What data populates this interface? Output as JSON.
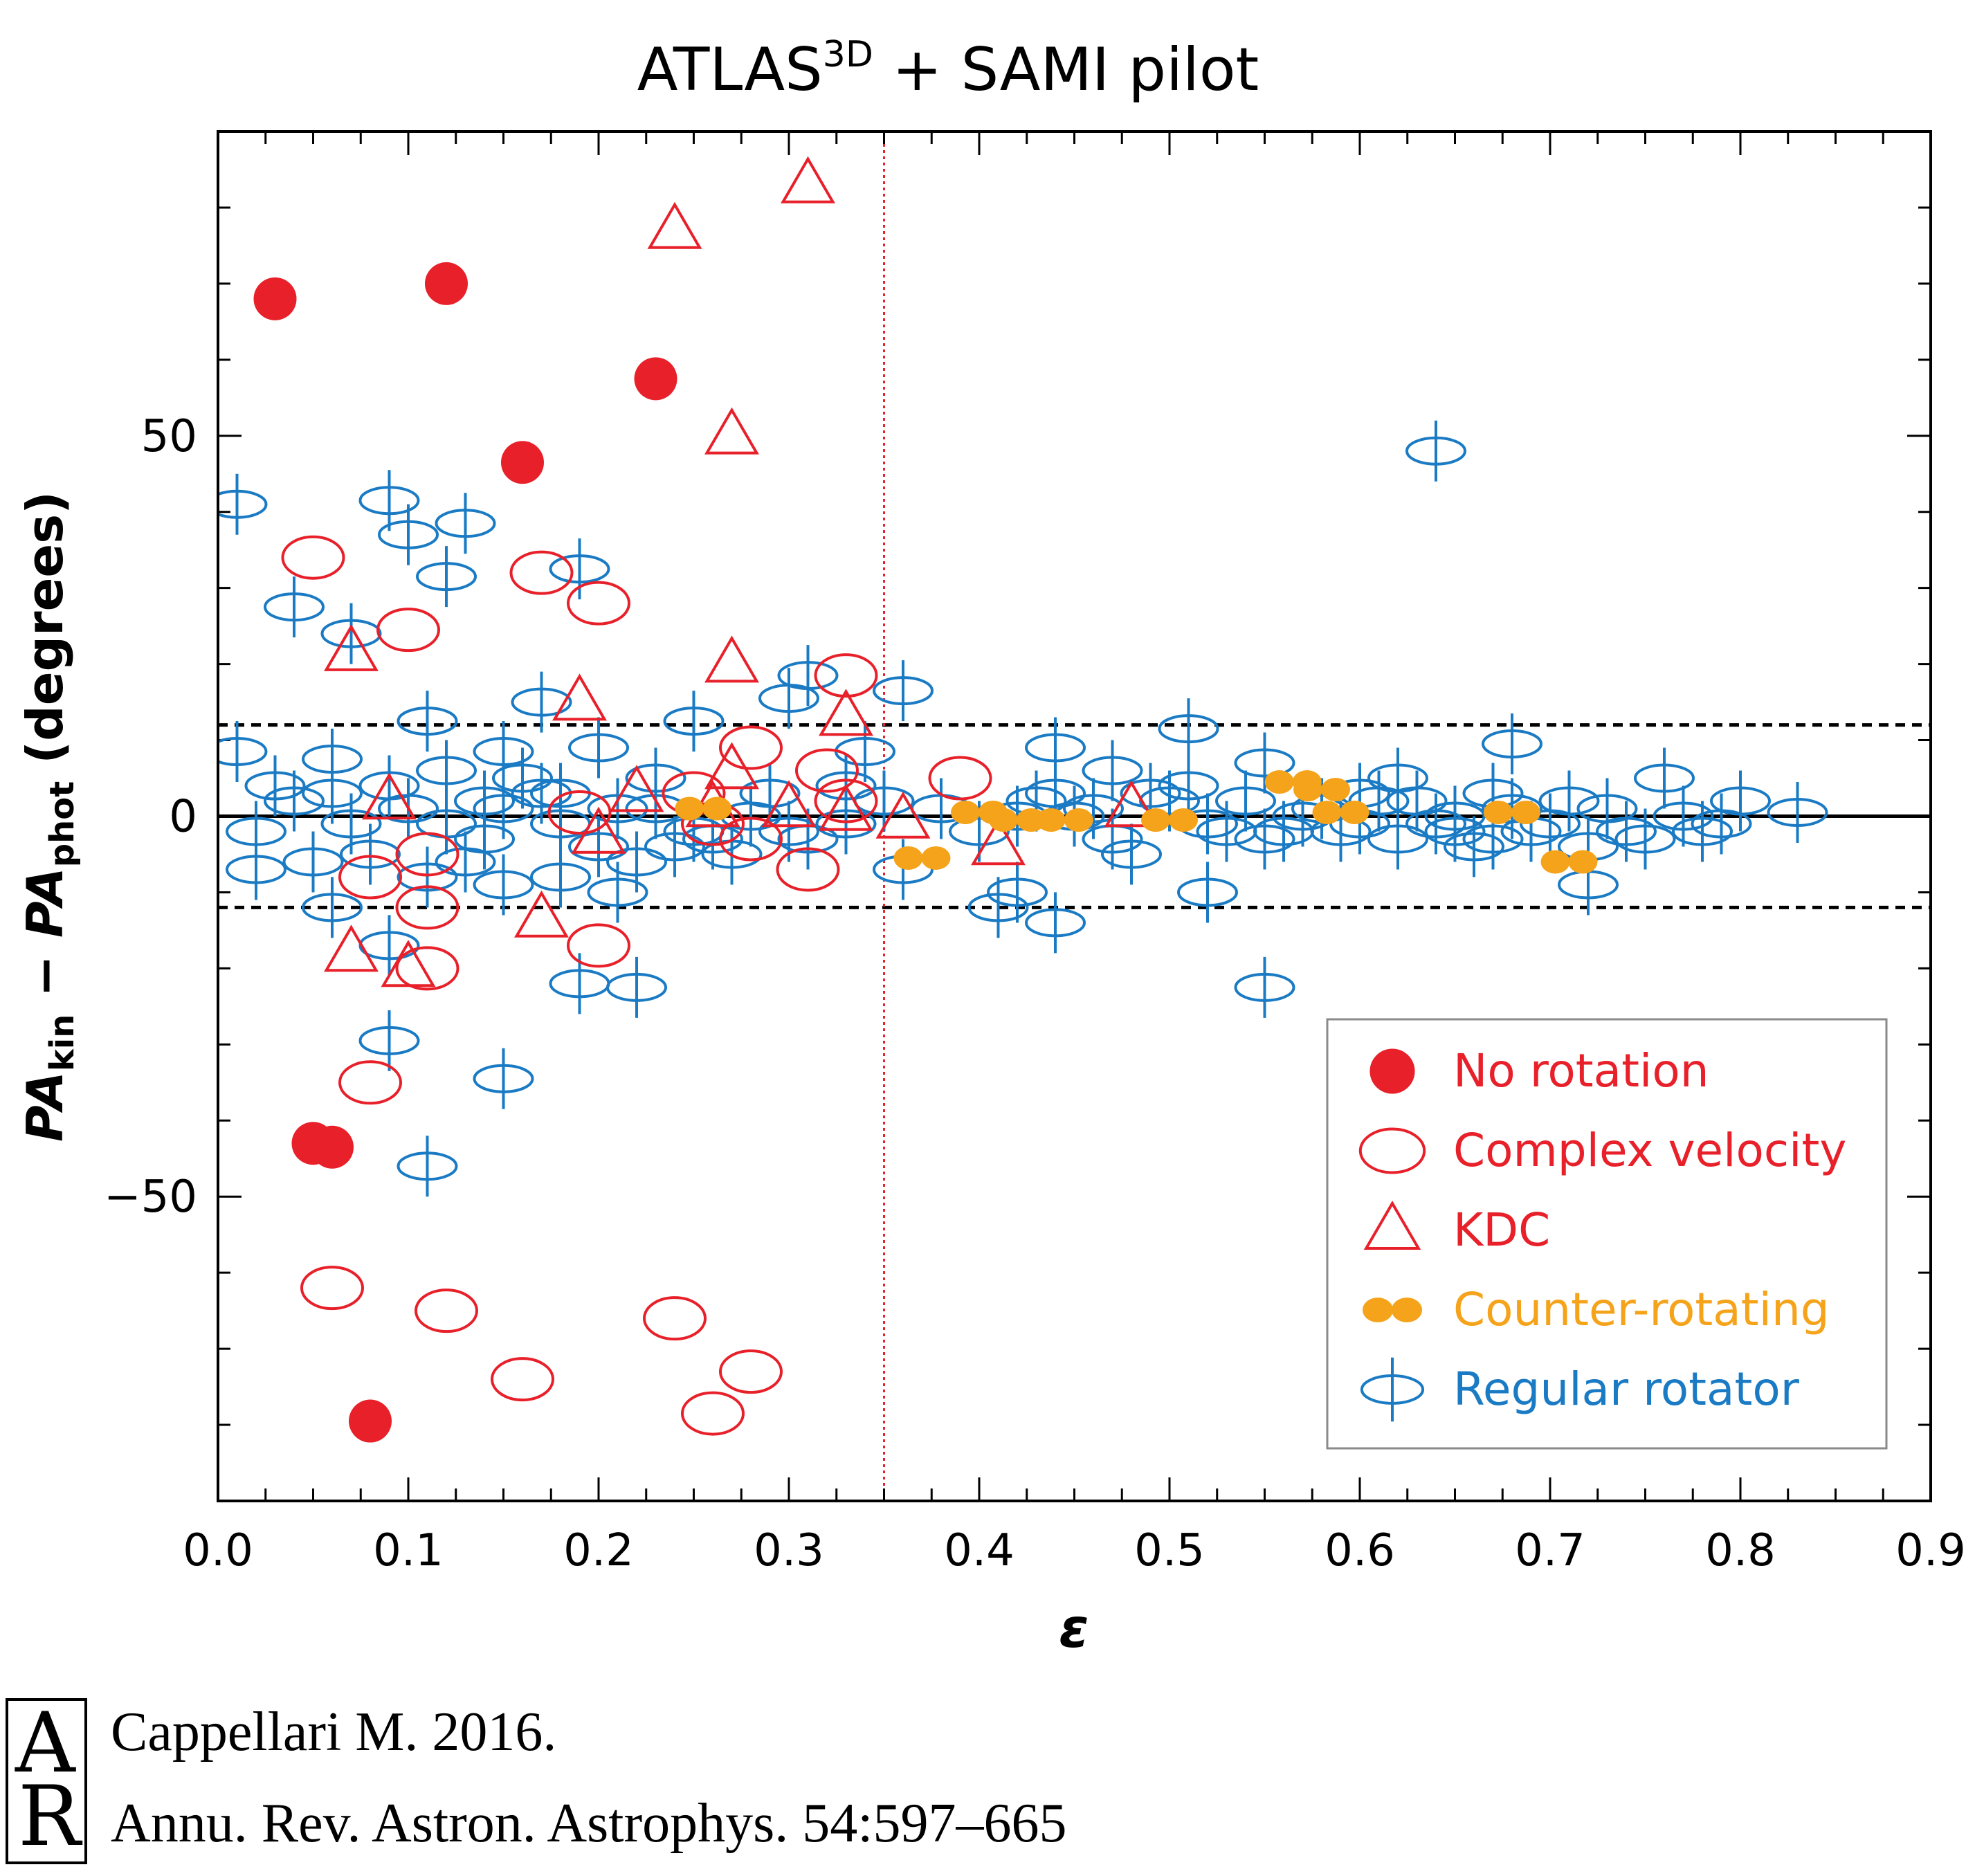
{
  "chart_data": {
    "type": "scatter",
    "title": "ATLAS",
    "title_superscript": "3D",
    "title_suffix": " + SAMI pilot",
    "xlabel": "ε",
    "ylabel": {
      "pa1": "PA",
      "pa1_sub": "kin",
      "minus": " − ",
      "pa2": "PA",
      "pa2_sub": "phot",
      "units": " (degrees)"
    },
    "xlim": [
      0.0,
      0.9
    ],
    "ylim": [
      -90,
      90
    ],
    "xticks": [
      0.0,
      0.1,
      0.2,
      0.3,
      0.4,
      0.5,
      0.6,
      0.7,
      0.8,
      0.9
    ],
    "xtick_labels": [
      "0.0",
      "0.1",
      "0.2",
      "0.3",
      "0.4",
      "0.5",
      "0.6",
      "0.7",
      "0.8",
      "0.9"
    ],
    "yticks": [
      -50,
      0,
      50
    ],
    "ytick_labels": [
      "−50",
      "0",
      "50"
    ],
    "reference_lines": {
      "zero": 0,
      "dashed": [
        12,
        -12
      ],
      "vertical_dotted": 0.35
    },
    "colors": {
      "red": "#e8202a",
      "orange": "#f5a31a",
      "blue": "#1a7bc4",
      "axis": "#000000"
    },
    "series": [
      {
        "name": "No rotation",
        "marker": "filled-circle",
        "points": [
          [
            0.03,
            68
          ],
          [
            0.12,
            70
          ],
          [
            0.23,
            57.5
          ],
          [
            0.16,
            46.5
          ],
          [
            0.05,
            -43
          ],
          [
            0.06,
            -43.5
          ],
          [
            0.08,
            -79.5
          ]
        ]
      },
      {
        "name": "Complex velocity",
        "marker": "open-ellipse",
        "points": [
          [
            0.05,
            34
          ],
          [
            0.17,
            32
          ],
          [
            0.2,
            28
          ],
          [
            0.1,
            24.5
          ],
          [
            0.33,
            18.5
          ],
          [
            0.28,
            9
          ],
          [
            0.32,
            6
          ],
          [
            0.39,
            5
          ],
          [
            0.25,
            3
          ],
          [
            0.19,
            0.5
          ],
          [
            0.26,
            -1
          ],
          [
            0.28,
            -3
          ],
          [
            0.11,
            -5
          ],
          [
            0.08,
            -8
          ],
          [
            0.11,
            -12
          ],
          [
            0.31,
            -7
          ],
          [
            0.2,
            -17
          ],
          [
            0.11,
            -20
          ],
          [
            0.08,
            -35
          ],
          [
            0.06,
            -62
          ],
          [
            0.12,
            -65
          ],
          [
            0.16,
            -74
          ],
          [
            0.24,
            -66
          ],
          [
            0.28,
            -73
          ],
          [
            0.26,
            -78.5
          ],
          [
            0.33,
            2
          ]
        ]
      },
      {
        "name": "KDC",
        "marker": "open-triangle",
        "points": [
          [
            0.31,
            83
          ],
          [
            0.24,
            77
          ],
          [
            0.27,
            50
          ],
          [
            0.07,
            21.5
          ],
          [
            0.27,
            20
          ],
          [
            0.19,
            15
          ],
          [
            0.33,
            13
          ],
          [
            0.27,
            6
          ],
          [
            0.09,
            2
          ],
          [
            0.22,
            3
          ],
          [
            0.26,
            1
          ],
          [
            0.3,
            1
          ],
          [
            0.33,
            0.5
          ],
          [
            0.36,
            -0.5
          ],
          [
            0.48,
            1
          ],
          [
            0.41,
            -4
          ],
          [
            0.17,
            -13.5
          ],
          [
            0.07,
            -18
          ],
          [
            0.1,
            -20
          ],
          [
            0.2,
            -2.5
          ]
        ]
      },
      {
        "name": "Counter-rotating",
        "marker": "orange-pair",
        "points": [
          [
            0.255,
            1
          ],
          [
            0.37,
            -5.5
          ],
          [
            0.4,
            0.5
          ],
          [
            0.42,
            -0.5
          ],
          [
            0.445,
            -0.5
          ],
          [
            0.5,
            -0.5
          ],
          [
            0.565,
            4.5
          ],
          [
            0.58,
            3.5
          ],
          [
            0.59,
            0.5
          ],
          [
            0.68,
            0.5
          ],
          [
            0.71,
            -6
          ]
        ]
      },
      {
        "name": "Regular rotator",
        "marker": "ellipse-cross",
        "points": [
          [
            0.64,
            48
          ],
          [
            0.01,
            41
          ],
          [
            0.09,
            41.5
          ],
          [
            0.1,
            37
          ],
          [
            0.13,
            38.5
          ],
          [
            0.12,
            31.5
          ],
          [
            0.19,
            32.5
          ],
          [
            0.04,
            27.5
          ],
          [
            0.07,
            24
          ],
          [
            0.36,
            16.5
          ],
          [
            0.3,
            15.5
          ],
          [
            0.31,
            18.5
          ],
          [
            0.17,
            15
          ],
          [
            0.01,
            8.5
          ],
          [
            0.11,
            12.5
          ],
          [
            0.25,
            12.5
          ],
          [
            0.51,
            11.5
          ],
          [
            0.44,
            9
          ],
          [
            0.68,
            9.5
          ],
          [
            0.06,
            7.5
          ],
          [
            0.15,
            8.5
          ],
          [
            0.2,
            9
          ],
          [
            0.34,
            8.5
          ],
          [
            0.47,
            6
          ],
          [
            0.55,
            7
          ],
          [
            0.62,
            5
          ],
          [
            0.76,
            5
          ],
          [
            0.02,
            -2
          ],
          [
            0.04,
            2
          ],
          [
            0.06,
            3
          ],
          [
            0.09,
            4
          ],
          [
            0.12,
            6
          ],
          [
            0.14,
            2
          ],
          [
            0.16,
            5
          ],
          [
            0.18,
            -1
          ],
          [
            0.21,
            1
          ],
          [
            0.23,
            5
          ],
          [
            0.25,
            -2
          ],
          [
            0.29,
            3
          ],
          [
            0.33,
            4
          ],
          [
            0.38,
            1
          ],
          [
            0.43,
            2
          ],
          [
            0.45,
            0
          ],
          [
            0.49,
            3
          ],
          [
            0.52,
            -1
          ],
          [
            0.54,
            2
          ],
          [
            0.57,
            0
          ],
          [
            0.6,
            -1
          ],
          [
            0.63,
            2
          ],
          [
            0.65,
            -2
          ],
          [
            0.67,
            3
          ],
          [
            0.7,
            -1
          ],
          [
            0.73,
            1
          ],
          [
            0.75,
            -3
          ],
          [
            0.79,
            -1
          ],
          [
            0.8,
            2
          ],
          [
            0.83,
            0.5
          ],
          [
            0.02,
            -7
          ],
          [
            0.05,
            -6
          ],
          [
            0.06,
            -12
          ],
          [
            0.08,
            -5
          ],
          [
            0.11,
            -8
          ],
          [
            0.13,
            -6
          ],
          [
            0.15,
            -9
          ],
          [
            0.18,
            -8
          ],
          [
            0.21,
            -10
          ],
          [
            0.24,
            -4
          ],
          [
            0.27,
            -5
          ],
          [
            0.31,
            -3
          ],
          [
            0.36,
            -7
          ],
          [
            0.41,
            -12
          ],
          [
            0.42,
            -10
          ],
          [
            0.44,
            -14
          ],
          [
            0.48,
            -5
          ],
          [
            0.52,
            -10
          ],
          [
            0.55,
            -3
          ],
          [
            0.59,
            -2
          ],
          [
            0.62,
            -3
          ],
          [
            0.66,
            -4
          ],
          [
            0.69,
            -2
          ],
          [
            0.72,
            -4
          ],
          [
            0.72,
            -9
          ],
          [
            0.78,
            -2
          ],
          [
            0.09,
            -17
          ],
          [
            0.19,
            -22
          ],
          [
            0.22,
            -22.5
          ],
          [
            0.09,
            -29.5
          ],
          [
            0.15,
            -34.5
          ],
          [
            0.11,
            -46
          ],
          [
            0.55,
            -22.5
          ],
          [
            0.42,
            0
          ],
          [
            0.46,
            1
          ],
          [
            0.5,
            2
          ],
          [
            0.53,
            -2
          ],
          [
            0.58,
            1
          ],
          [
            0.61,
            2
          ],
          [
            0.65,
            0
          ],
          [
            0.67,
            -3
          ],
          [
            0.71,
            2
          ],
          [
            0.74,
            -2
          ],
          [
            0.77,
            0
          ],
          [
            0.03,
            4
          ],
          [
            0.07,
            -1
          ],
          [
            0.1,
            1
          ],
          [
            0.14,
            -3
          ],
          [
            0.17,
            3
          ],
          [
            0.2,
            -4
          ],
          [
            0.23,
            1
          ],
          [
            0.26,
            -3
          ],
          [
            0.3,
            -2
          ],
          [
            0.33,
            -1
          ],
          [
            0.12,
            -1
          ],
          [
            0.15,
            1
          ],
          [
            0.18,
            3
          ],
          [
            0.22,
            -6
          ],
          [
            0.28,
            0
          ],
          [
            0.35,
            2
          ],
          [
            0.4,
            -2
          ],
          [
            0.44,
            3
          ],
          [
            0.47,
            -3
          ],
          [
            0.51,
            4
          ],
          [
            0.56,
            -2
          ],
          [
            0.6,
            3
          ],
          [
            0.64,
            -1
          ],
          [
            0.68,
            1
          ]
        ]
      }
    ],
    "legend": {
      "placement": "bottom-right",
      "entries": [
        "No rotation",
        "Complex velocity",
        "KDC",
        "Counter-rotating",
        "Regular rotator"
      ]
    }
  },
  "citation": {
    "logo_top": "A",
    "logo_bottom": "R",
    "line1": "Cappellari M. 2016.",
    "line2": "Annu. Rev. Astron. Astrophys. 54:597–665"
  }
}
